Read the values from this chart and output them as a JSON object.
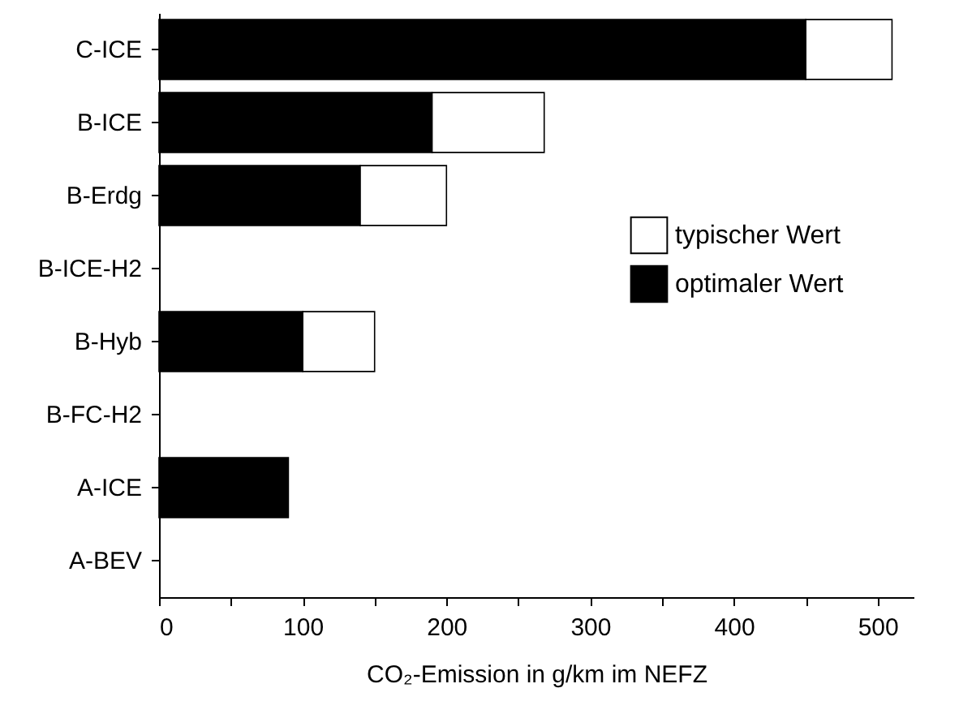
{
  "chart_data": {
    "type": "bar",
    "orientation": "horizontal",
    "stacked": true,
    "categories": [
      "C-ICE",
      "B-ICE",
      "B-Erdg",
      "B-ICE-H2",
      "B-Hyb",
      "B-FC-H2",
      "A-ICE",
      "A-BEV"
    ],
    "series": [
      {
        "name": "optimaler Wert",
        "color": "#000000",
        "values": [
          450,
          190,
          140,
          null,
          100,
          null,
          90,
          null
        ]
      },
      {
        "name": "typischer Wert",
        "color": "#ffffff",
        "values": [
          60,
          78,
          60,
          null,
          50,
          null,
          null,
          null
        ]
      }
    ],
    "xlabel": "CO₂-Emission in g/km im NEFZ",
    "xlim": [
      0,
      525
    ],
    "xticks": [
      0,
      {
        "value": 50,
        "label": null
      },
      100,
      {
        "value": 150,
        "label": null
      },
      200,
      {
        "value": 250,
        "label": null
      },
      300,
      {
        "value": 350,
        "label": null
      },
      400,
      {
        "value": 450,
        "label": null
      },
      500
    ],
    "legend": "right",
    "grid": false
  }
}
